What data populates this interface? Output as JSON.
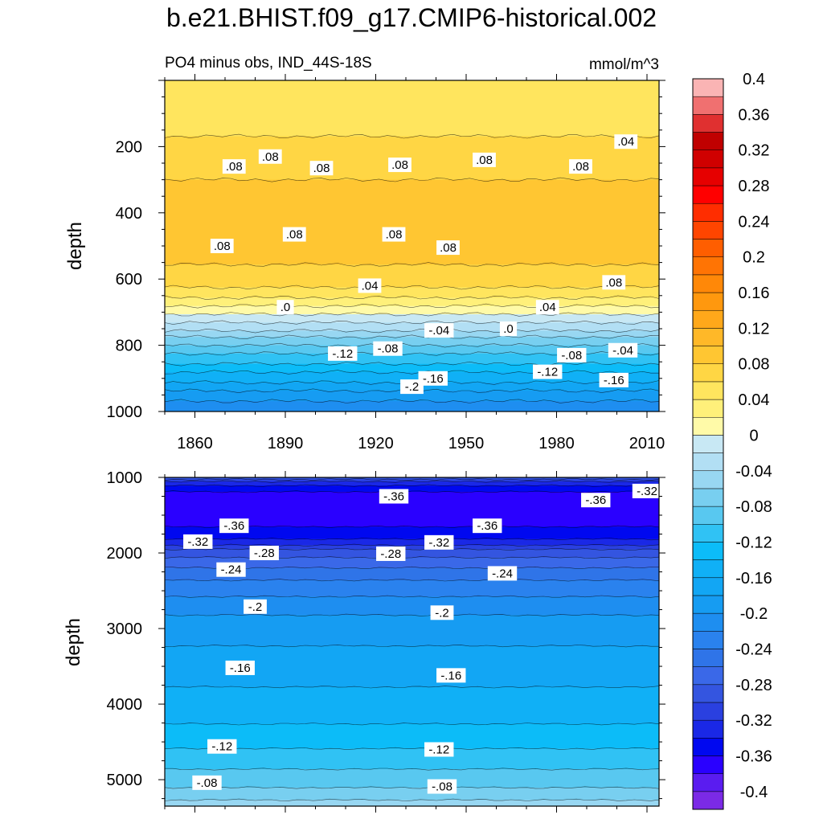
{
  "title": "b.e21.BHIST.f09_g17.CMIP6-historical.002",
  "chart_data": [
    {
      "type": "heatmap",
      "panel": "upper",
      "title": "PO4 minus obs, IND_44S-18S",
      "units": "mmol/m^3",
      "xlabel": "",
      "ylabel": "depth",
      "xlim": [
        1850,
        2014
      ],
      "ylim": [
        0,
        1000
      ],
      "y_reversed": true,
      "x_ticks": [
        1860,
        1890,
        1920,
        1950,
        1980,
        2010
      ],
      "x_tick_labels": [
        "1860",
        "1890",
        "1920",
        "1950",
        "1980",
        "2010"
      ],
      "y_ticks": [
        200,
        400,
        600,
        800,
        1000
      ],
      "y_tick_labels": [
        "200",
        "400",
        "600",
        "800",
        "1000"
      ],
      "depth_profile": [
        {
          "depth": 0,
          "value": 0.045
        },
        {
          "depth": 100,
          "value": 0.05
        },
        {
          "depth": 200,
          "value": 0.065
        },
        {
          "depth": 300,
          "value": 0.08
        },
        {
          "depth": 400,
          "value": 0.09
        },
        {
          "depth": 500,
          "value": 0.09
        },
        {
          "depth": 600,
          "value": 0.07
        },
        {
          "depth": 650,
          "value": 0.045
        },
        {
          "depth": 690,
          "value": 0.01
        },
        {
          "depth": 720,
          "value": -0.01
        },
        {
          "depth": 760,
          "value": -0.05
        },
        {
          "depth": 800,
          "value": -0.085
        },
        {
          "depth": 850,
          "value": -0.12
        },
        {
          "depth": 900,
          "value": -0.155
        },
        {
          "depth": 950,
          "value": -0.19
        },
        {
          "depth": 1000,
          "value": -0.22
        }
      ],
      "contour_labels": [
        {
          "x": 1873,
          "depth": 260,
          "text": ".08"
        },
        {
          "x": 1885,
          "depth": 230,
          "text": ".08"
        },
        {
          "x": 1902,
          "depth": 265,
          "text": ".08"
        },
        {
          "x": 1928,
          "depth": 255,
          "text": ".08"
        },
        {
          "x": 1956,
          "depth": 240,
          "text": ".08"
        },
        {
          "x": 1988,
          "depth": 260,
          "text": ".08"
        },
        {
          "x": 2003,
          "depth": 185,
          "text": ".04"
        },
        {
          "x": 1869,
          "depth": 500,
          "text": ".08"
        },
        {
          "x": 1893,
          "depth": 465,
          "text": ".08"
        },
        {
          "x": 1926,
          "depth": 465,
          "text": ".08"
        },
        {
          "x": 1944,
          "depth": 505,
          "text": ".08"
        },
        {
          "x": 1999,
          "depth": 610,
          "text": ".08"
        },
        {
          "x": 1918,
          "depth": 620,
          "text": ".04"
        },
        {
          "x": 1890,
          "depth": 685,
          "text": ".0"
        },
        {
          "x": 1964,
          "depth": 750,
          "text": ".0"
        },
        {
          "x": 1977,
          "depth": 685,
          "text": ".04"
        },
        {
          "x": 1941,
          "depth": 755,
          "text": "-.04"
        },
        {
          "x": 1924,
          "depth": 810,
          "text": "-.08"
        },
        {
          "x": 1909,
          "depth": 825,
          "text": "-.12"
        },
        {
          "x": 1985,
          "depth": 830,
          "text": "-.08"
        },
        {
          "x": 2002,
          "depth": 815,
          "text": "-.04"
        },
        {
          "x": 1939,
          "depth": 900,
          "text": "-.16"
        },
        {
          "x": 1977,
          "depth": 880,
          "text": "-.12"
        },
        {
          "x": 1999,
          "depth": 905,
          "text": "-.16"
        },
        {
          "x": 1932,
          "depth": 925,
          "text": "-.2"
        }
      ]
    },
    {
      "type": "heatmap",
      "panel": "lower",
      "title": "",
      "xlabel": "",
      "ylabel": "depth",
      "xlim": [
        1850,
        2014
      ],
      "ylim": [
        1000,
        5350
      ],
      "y_reversed": true,
      "y_ticks": [
        1000,
        2000,
        3000,
        4000,
        5000
      ],
      "y_tick_labels": [
        "1000",
        "2000",
        "3000",
        "4000",
        "5000"
      ],
      "depth_profile": [
        {
          "depth": 1000,
          "value": -0.3
        },
        {
          "depth": 1100,
          "value": -0.345
        },
        {
          "depth": 1250,
          "value": -0.37
        },
        {
          "depth": 1450,
          "value": -0.375
        },
        {
          "depth": 1700,
          "value": -0.355
        },
        {
          "depth": 1850,
          "value": -0.33
        },
        {
          "depth": 2000,
          "value": -0.285
        },
        {
          "depth": 2300,
          "value": -0.245
        },
        {
          "depth": 2700,
          "value": -0.205
        },
        {
          "depth": 3100,
          "value": -0.185
        },
        {
          "depth": 3600,
          "value": -0.165
        },
        {
          "depth": 4100,
          "value": -0.15
        },
        {
          "depth": 4500,
          "value": -0.125
        },
        {
          "depth": 4800,
          "value": -0.105
        },
        {
          "depth": 5100,
          "value": -0.08
        },
        {
          "depth": 5350,
          "value": -0.05
        }
      ],
      "contour_labels": [
        {
          "x": 1926,
          "depth": 1250,
          "text": "-.36"
        },
        {
          "x": 1993,
          "depth": 1300,
          "text": "-.36"
        },
        {
          "x": 2010,
          "depth": 1180,
          "text": "-.32"
        },
        {
          "x": 1873,
          "depth": 1640,
          "text": "-.36"
        },
        {
          "x": 1957,
          "depth": 1640,
          "text": "-.36"
        },
        {
          "x": 1861,
          "depth": 1850,
          "text": "-.32"
        },
        {
          "x": 1941,
          "depth": 1860,
          "text": "-.32"
        },
        {
          "x": 1883,
          "depth": 2000,
          "text": "-.28"
        },
        {
          "x": 1925,
          "depth": 2010,
          "text": "-.28"
        },
        {
          "x": 1872,
          "depth": 2220,
          "text": "-.24"
        },
        {
          "x": 1962,
          "depth": 2270,
          "text": "-.24"
        },
        {
          "x": 1880,
          "depth": 2710,
          "text": "-.2"
        },
        {
          "x": 1942,
          "depth": 2790,
          "text": "-.2"
        },
        {
          "x": 1875,
          "depth": 3520,
          "text": "-.16"
        },
        {
          "x": 1945,
          "depth": 3620,
          "text": "-.16"
        },
        {
          "x": 1869,
          "depth": 4560,
          "text": "-.12"
        },
        {
          "x": 1941,
          "depth": 4600,
          "text": "-.12"
        },
        {
          "x": 1864,
          "depth": 5040,
          "text": "-.08"
        },
        {
          "x": 1942,
          "depth": 5090,
          "text": "-.08"
        }
      ]
    }
  ],
  "colorbar": {
    "levels": [
      -0.4,
      -0.38,
      -0.36,
      -0.34,
      -0.32,
      -0.3,
      -0.28,
      -0.26,
      -0.24,
      -0.22,
      -0.2,
      -0.18,
      -0.16,
      -0.14,
      -0.12,
      -0.1,
      -0.08,
      -0.06,
      -0.04,
      -0.02,
      0,
      0.02,
      0.04,
      0.06,
      0.08,
      0.1,
      0.12,
      0.14,
      0.16,
      0.18,
      0.2,
      0.22,
      0.24,
      0.26,
      0.28,
      0.3,
      0.32,
      0.34,
      0.36,
      0.38,
      0.4
    ],
    "colors": [
      "#7b2ae6",
      "#5a1cf0",
      "#2a00ff",
      "#0008f0",
      "#1a28e6",
      "#2a40e0",
      "#3455e0",
      "#3a68e8",
      "#2f74e8",
      "#2a82ee",
      "#1e8ef0",
      "#169cf2",
      "#12a6f4",
      "#10b0f6",
      "#0cbcf8",
      "#30c2f4",
      "#58c8f0",
      "#78cff0",
      "#98d7f2",
      "#b2dff4",
      "#c8e8f4",
      "#fffaa8",
      "#fff07a",
      "#ffe55e",
      "#ffd644",
      "#ffc632",
      "#ffb828",
      "#ffa81a",
      "#ff980e",
      "#ff8808",
      "#ff7404",
      "#ff5e00",
      "#ff4500",
      "#ff2d00",
      "#ff0000",
      "#e60000",
      "#d00000",
      "#c00000",
      "#e03030",
      "#f07070",
      "#fab4b4"
    ],
    "tick_labels": [
      "-0.4",
      "-0.36",
      "-0.32",
      "-0.28",
      "-0.24",
      "-0.2",
      "-0.16",
      "-0.12",
      "-0.08",
      "-0.04",
      "0",
      "0.04",
      "0.08",
      "0.12",
      "0.16",
      "0.2",
      "0.24",
      "0.28",
      "0.32",
      "0.36",
      "0.4"
    ]
  }
}
